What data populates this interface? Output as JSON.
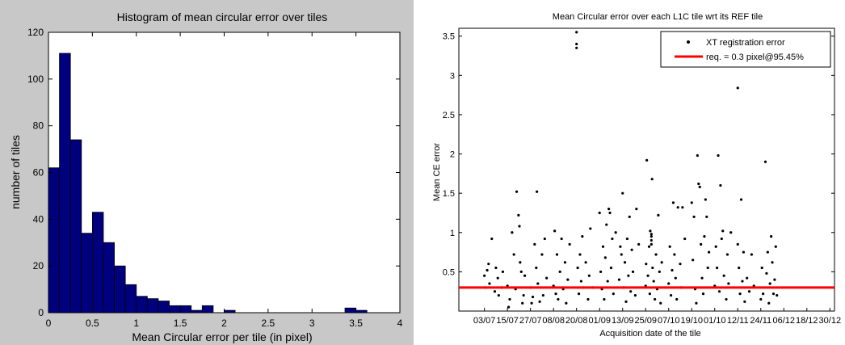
{
  "chart_data": [
    {
      "type": "bar",
      "title": "Histogram of mean circular error over tiles",
      "xlabel": "Mean Circular error per tile (in pixel)",
      "ylabel": "number of tiles",
      "xlim": [
        0,
        4
      ],
      "ylim": [
        0,
        120
      ],
      "bin_width": 0.125,
      "x_ticks": [
        "0",
        "0.5",
        "1",
        "1.5",
        "2",
        "2.5",
        "3",
        "3.5",
        "4"
      ],
      "y_ticks": [
        "0",
        "20",
        "40",
        "60",
        "80",
        "100",
        "120"
      ],
      "bins": [
        {
          "x0": 0.0,
          "x1": 0.125,
          "count": 62
        },
        {
          "x0": 0.125,
          "x1": 0.25,
          "count": 111
        },
        {
          "x0": 0.25,
          "x1": 0.375,
          "count": 74
        },
        {
          "x0": 0.375,
          "x1": 0.5,
          "count": 34
        },
        {
          "x0": 0.5,
          "x1": 0.625,
          "count": 43
        },
        {
          "x0": 0.625,
          "x1": 0.75,
          "count": 30
        },
        {
          "x0": 0.75,
          "x1": 0.875,
          "count": 20
        },
        {
          "x0": 0.875,
          "x1": 1.0,
          "count": 12
        },
        {
          "x0": 1.0,
          "x1": 1.125,
          "count": 7
        },
        {
          "x0": 1.125,
          "x1": 1.25,
          "count": 6
        },
        {
          "x0": 1.25,
          "x1": 1.375,
          "count": 5
        },
        {
          "x0": 1.375,
          "x1": 1.5,
          "count": 3
        },
        {
          "x0": 1.5,
          "x1": 1.625,
          "count": 3
        },
        {
          "x0": 1.625,
          "x1": 1.75,
          "count": 1
        },
        {
          "x0": 1.75,
          "x1": 1.875,
          "count": 3
        },
        {
          "x0": 1.875,
          "x1": 2.0,
          "count": 0
        },
        {
          "x0": 2.0,
          "x1": 2.125,
          "count": 1
        },
        {
          "x0": 3.375,
          "x1": 3.5,
          "count": 2
        },
        {
          "x0": 3.5,
          "x1": 3.625,
          "count": 1
        }
      ],
      "bar_color": "#00007f",
      "background": "#c8c8c8"
    },
    {
      "type": "scatter",
      "title": "Mean Circular error over each L1C tile wrt its REF tile",
      "xlabel": "Acquisition date of the tile",
      "ylabel": "Mean CE error",
      "ylim": [
        0,
        3.6
      ],
      "y_ticks": [
        "0.5",
        "1",
        "1.5",
        "2",
        "2.5",
        "3",
        "3.5"
      ],
      "x_ticks": [
        "03/07",
        "15/07",
        "27/07",
        "08/08",
        "20/08",
        "01/09",
        "13/09",
        "25/09",
        "07/10",
        "19/10",
        "01/10",
        "12/11",
        "24/11",
        "06/12",
        "18/12",
        "30/12"
      ],
      "legend": {
        "position": "top-right",
        "entries": [
          {
            "label": "XT registration error",
            "marker": "dot",
            "color": "#000000"
          },
          {
            "label": "req. = 0.3 pixel@95.45%",
            "marker": "line",
            "color": "#ff0000"
          }
        ]
      },
      "reference_line": {
        "y": 0.3,
        "color": "#ff0000"
      },
      "series": [
        {
          "name": "XT registration error",
          "points": [
            [
              0.0,
              0.45
            ],
            [
              0.05,
              0.3
            ],
            [
              0.12,
              0.52
            ],
            [
              0.18,
              0.6
            ],
            [
              0.22,
              0.35
            ],
            [
              0.32,
              0.92
            ],
            [
              0.45,
              0.25
            ],
            [
              0.5,
              0.55
            ],
            [
              0.58,
              0.42
            ],
            [
              0.62,
              0.2
            ],
            [
              0.75,
              0.3
            ],
            [
              0.8,
              0.5
            ],
            [
              1.0,
              0.32
            ],
            [
              1.05,
              0.05
            ],
            [
              1.1,
              0.15
            ],
            [
              1.2,
              1.0
            ],
            [
              1.28,
              0.72
            ],
            [
              1.35,
              0.28
            ],
            [
              1.4,
              1.52
            ],
            [
              1.48,
              1.22
            ],
            [
              1.52,
              1.08
            ],
            [
              1.55,
              0.62
            ],
            [
              1.6,
              0.5
            ],
            [
              1.65,
              0.1
            ],
            [
              1.7,
              0.2
            ],
            [
              1.75,
              0.45
            ],
            [
              2.0,
              0.3
            ],
            [
              2.05,
              0.1
            ],
            [
              2.1,
              0.18
            ],
            [
              2.18,
              0.85
            ],
            [
              2.25,
              0.55
            ],
            [
              2.28,
              1.52
            ],
            [
              2.32,
              0.35
            ],
            [
              2.4,
              0.12
            ],
            [
              2.5,
              0.72
            ],
            [
              2.55,
              0.2
            ],
            [
              2.62,
              0.92
            ],
            [
              2.7,
              0.42
            ],
            [
              3.0,
              0.32
            ],
            [
              3.05,
              1.02
            ],
            [
              3.1,
              0.22
            ],
            [
              3.15,
              0.72
            ],
            [
              3.2,
              0.15
            ],
            [
              3.28,
              0.5
            ],
            [
              3.35,
              0.92
            ],
            [
              3.42,
              0.28
            ],
            [
              3.5,
              0.62
            ],
            [
              3.55,
              0.1
            ],
            [
              3.62,
              0.4
            ],
            [
              3.7,
              0.85
            ],
            [
              4.0,
              3.55
            ],
            [
              4.0,
              3.4
            ],
            [
              4.0,
              3.35
            ],
            [
              4.05,
              0.55
            ],
            [
              4.1,
              0.22
            ],
            [
              4.15,
              0.72
            ],
            [
              4.2,
              0.38
            ],
            [
              4.25,
              0.95
            ],
            [
              4.3,
              0.3
            ],
            [
              4.4,
              0.62
            ],
            [
              4.5,
              0.15
            ],
            [
              4.55,
              0.45
            ],
            [
              4.6,
              1.05
            ],
            [
              4.7,
              0.3
            ],
            [
              5.0,
              1.25
            ],
            [
              5.05,
              0.5
            ],
            [
              5.1,
              0.28
            ],
            [
              5.15,
              0.82
            ],
            [
              5.2,
              0.15
            ],
            [
              5.25,
              0.68
            ],
            [
              5.3,
              1.1
            ],
            [
              5.35,
              0.38
            ],
            [
              5.4,
              1.3
            ],
            [
              5.45,
              1.25
            ],
            [
              5.5,
              0.55
            ],
            [
              5.55,
              0.92
            ],
            [
              5.6,
              0.22
            ],
            [
              5.7,
              1.0
            ],
            [
              5.85,
              0.4
            ],
            [
              5.9,
              0.82
            ],
            [
              5.95,
              0.72
            ],
            [
              6.0,
              1.5
            ],
            [
              6.05,
              0.3
            ],
            [
              6.1,
              0.62
            ],
            [
              6.15,
              0.12
            ],
            [
              6.2,
              0.92
            ],
            [
              6.25,
              0.45
            ],
            [
              6.3,
              1.2
            ],
            [
              6.35,
              0.25
            ],
            [
              6.4,
              0.78
            ],
            [
              6.45,
              0.5
            ],
            [
              6.55,
              0.2
            ],
            [
              6.6,
              1.3
            ],
            [
              6.7,
              0.85
            ],
            [
              7.0,
              0.32
            ],
            [
              7.02,
              0.6
            ],
            [
              7.05,
              1.92
            ],
            [
              7.1,
              0.45
            ],
            [
              7.15,
              0.82
            ],
            [
              7.18,
              0.22
            ],
            [
              7.2,
              1.02
            ],
            [
              7.25,
              0.98
            ],
            [
              7.25,
              0.95
            ],
            [
              7.25,
              0.9
            ],
            [
              7.25,
              0.85
            ],
            [
              7.28,
              1.68
            ],
            [
              7.3,
              0.55
            ],
            [
              7.35,
              0.38
            ],
            [
              7.4,
              0.15
            ],
            [
              7.45,
              0.72
            ],
            [
              7.5,
              0.28
            ],
            [
              7.55,
              1.22
            ],
            [
              7.6,
              0.5
            ],
            [
              7.65,
              0.1
            ],
            [
              7.7,
              0.62
            ],
            [
              8.0,
              0.35
            ],
            [
              8.05,
              0.82
            ],
            [
              8.1,
              0.2
            ],
            [
              8.15,
              0.52
            ],
            [
              8.2,
              1.38
            ],
            [
              8.25,
              0.72
            ],
            [
              8.3,
              0.42
            ],
            [
              8.35,
              0.15
            ],
            [
              8.4,
              1.32
            ],
            [
              8.5,
              0.6
            ],
            [
              8.55,
              0.3
            ],
            [
              8.6,
              1.32
            ],
            [
              8.7,
              0.92
            ],
            [
              9.0,
              1.38
            ],
            [
              9.05,
              0.65
            ],
            [
              9.1,
              1.2
            ],
            [
              9.15,
              0.28
            ],
            [
              9.2,
              0.1
            ],
            [
              9.25,
              1.98
            ],
            [
              9.3,
              1.62
            ],
            [
              9.35,
              1.58
            ],
            [
              9.4,
              0.85
            ],
            [
              9.45,
              0.42
            ],
            [
              9.5,
              0.22
            ],
            [
              9.55,
              0.95
            ],
            [
              9.6,
              1.42
            ],
            [
              9.65,
              1.2
            ],
            [
              9.7,
              0.55
            ],
            [
              9.75,
              0.75
            ],
            [
              10.0,
              0.32
            ],
            [
              10.05,
              0.82
            ],
            [
              10.1,
              0.55
            ],
            [
              10.15,
              1.98
            ],
            [
              10.2,
              0.25
            ],
            [
              10.25,
              1.6
            ],
            [
              10.3,
              0.92
            ],
            [
              10.35,
              1.02
            ],
            [
              10.4,
              0.45
            ],
            [
              10.5,
              0.15
            ],
            [
              10.55,
              0.72
            ],
            [
              10.6,
              0.35
            ],
            [
              10.7,
              1.0
            ],
            [
              11.0,
              2.84
            ],
            [
              11.0,
              0.85
            ],
            [
              11.05,
              0.55
            ],
            [
              11.1,
              0.22
            ],
            [
              11.15,
              1.42
            ],
            [
              11.2,
              0.38
            ],
            [
              11.25,
              0.75
            ],
            [
              11.3,
              0.12
            ],
            [
              11.4,
              0.42
            ],
            [
              11.5,
              0.25
            ],
            [
              11.6,
              0.72
            ],
            [
              11.7,
              0.32
            ],
            [
              12.0,
              0.15
            ],
            [
              12.05,
              0.55
            ],
            [
              12.1,
              0.22
            ],
            [
              12.2,
              1.9
            ],
            [
              12.25,
              0.48
            ],
            [
              12.3,
              0.75
            ],
            [
              12.35,
              0.1
            ],
            [
              12.4,
              0.35
            ],
            [
              12.45,
              0.95
            ],
            [
              12.5,
              0.62
            ],
            [
              12.55,
              0.22
            ],
            [
              12.6,
              0.4
            ],
            [
              12.65,
              0.82
            ],
            [
              12.7,
              0.2
            ]
          ]
        }
      ]
    }
  ]
}
